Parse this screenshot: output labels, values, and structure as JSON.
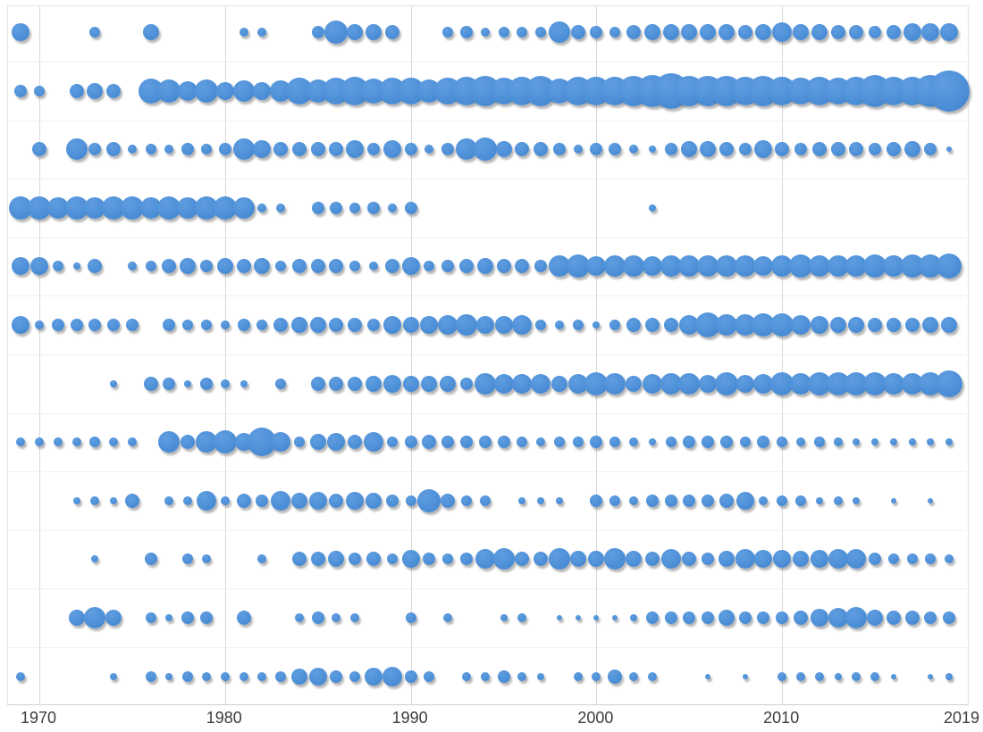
{
  "chart_data": {
    "type": "scatter",
    "subtype": "bubble-timeline",
    "title": "",
    "xlabel": "",
    "ylabel": "",
    "grid": "vertical-decades-and-faint-row-separators",
    "legend": "none",
    "x_axis": {
      "ticks": [
        "1970",
        "1980",
        "1990",
        "2000",
        "2010",
        "2019"
      ],
      "tick_years": [
        1970,
        1980,
        1990,
        2000,
        2010,
        2019
      ],
      "range_years": [
        1968,
        2020
      ]
    },
    "y_axis": {
      "rows": 12,
      "labels": []
    },
    "years_start": 1969,
    "years_end": 2019,
    "bubble_radius_unit": "px",
    "series": [
      {
        "name": "row-1",
        "radii": [
          10,
          0,
          0,
          0,
          6,
          0,
          0,
          9,
          0,
          0,
          0,
          0,
          5,
          5,
          0,
          0,
          7,
          13,
          9,
          9,
          8,
          0,
          0,
          6,
          7,
          5,
          6,
          6,
          6,
          12,
          8,
          7,
          6,
          8,
          9,
          9,
          9,
          9,
          9,
          8,
          9,
          11,
          9,
          9,
          8,
          8,
          7,
          8,
          10,
          10,
          10
        ]
      },
      {
        "name": "row-2",
        "radii": [
          7,
          6,
          0,
          8,
          9,
          8,
          0,
          14,
          13,
          11,
          13,
          10,
          12,
          10,
          12,
          15,
          13,
          15,
          16,
          14,
          15,
          15,
          13,
          15,
          16,
          17,
          15,
          16,
          17,
          14,
          16,
          16,
          16,
          17,
          18,
          20,
          17,
          17,
          17,
          16,
          17,
          16,
          15,
          16,
          15,
          16,
          18,
          16,
          16,
          18,
          23
        ]
      },
      {
        "name": "row-3",
        "radii": [
          0,
          8,
          0,
          12,
          7,
          8,
          5,
          6,
          5,
          7,
          6,
          7,
          12,
          10,
          8,
          8,
          8,
          8,
          10,
          7,
          10,
          7,
          5,
          7,
          12,
          13,
          9,
          8,
          8,
          7,
          5,
          7,
          7,
          5,
          4,
          7,
          9,
          9,
          8,
          7,
          10,
          8,
          7,
          8,
          8,
          8,
          7,
          8,
          9,
          7,
          3
        ]
      },
      {
        "name": "row-4",
        "radii": [
          13,
          13,
          12,
          13,
          12,
          13,
          13,
          12,
          13,
          12,
          13,
          13,
          12,
          5,
          5,
          0,
          7,
          7,
          6,
          7,
          5,
          7,
          0,
          0,
          0,
          0,
          0,
          0,
          0,
          0,
          0,
          0,
          0,
          0,
          4,
          0,
          0,
          0,
          0,
          0,
          0,
          0,
          0,
          0,
          0,
          0,
          0,
          0,
          0,
          0,
          0
        ]
      },
      {
        "name": "row-5",
        "radii": [
          10,
          10,
          6,
          4,
          8,
          0,
          5,
          6,
          8,
          9,
          7,
          9,
          8,
          9,
          6,
          8,
          8,
          8,
          6,
          5,
          8,
          10,
          6,
          7,
          8,
          9,
          8,
          8,
          7,
          12,
          13,
          11,
          12,
          12,
          11,
          12,
          12,
          12,
          12,
          12,
          11,
          12,
          13,
          12,
          12,
          12,
          13,
          12,
          13,
          13,
          14
        ]
      },
      {
        "name": "row-6",
        "radii": [
          10,
          5,
          7,
          7,
          7,
          7,
          7,
          0,
          7,
          6,
          6,
          5,
          7,
          6,
          8,
          9,
          9,
          8,
          8,
          7,
          10,
          9,
          10,
          11,
          12,
          10,
          10,
          11,
          6,
          5,
          6,
          4,
          6,
          8,
          8,
          8,
          11,
          14,
          12,
          12,
          13,
          13,
          11,
          10,
          9,
          9,
          8,
          8,
          8,
          9,
          9
        ]
      },
      {
        "name": "row-7",
        "radii": [
          0,
          0,
          0,
          0,
          0,
          4,
          0,
          8,
          7,
          4,
          7,
          5,
          4,
          0,
          6,
          0,
          8,
          8,
          8,
          9,
          10,
          9,
          9,
          9,
          7,
          12,
          11,
          11,
          11,
          9,
          11,
          13,
          12,
          9,
          11,
          12,
          12,
          10,
          13,
          10,
          11,
          13,
          12,
          13,
          13,
          13,
          13,
          12,
          12,
          13,
          15
        ]
      },
      {
        "name": "row-8",
        "radii": [
          5,
          5,
          5,
          5,
          6,
          5,
          5,
          0,
          12,
          8,
          12,
          13,
          10,
          16,
          11,
          6,
          9,
          10,
          8,
          11,
          6,
          7,
          8,
          7,
          7,
          7,
          7,
          6,
          5,
          6,
          6,
          7,
          6,
          5,
          4,
          6,
          7,
          7,
          7,
          6,
          7,
          6,
          5,
          6,
          5,
          4,
          4,
          4,
          4,
          4,
          4
        ]
      },
      {
        "name": "row-9",
        "radii": [
          0,
          0,
          0,
          4,
          5,
          4,
          8,
          0,
          5,
          5,
          11,
          5,
          8,
          7,
          11,
          9,
          10,
          8,
          10,
          9,
          7,
          6,
          13,
          8,
          6,
          6,
          0,
          4,
          4,
          4,
          0,
          7,
          6,
          5,
          7,
          7,
          7,
          7,
          8,
          10,
          5,
          6,
          6,
          4,
          5,
          4,
          0,
          3,
          0,
          3,
          0
        ]
      },
      {
        "name": "row-10",
        "radii": [
          0,
          0,
          0,
          0,
          4,
          0,
          0,
          7,
          0,
          6,
          5,
          0,
          0,
          5,
          0,
          8,
          8,
          9,
          7,
          8,
          6,
          10,
          7,
          6,
          7,
          11,
          12,
          8,
          8,
          12,
          9,
          9,
          12,
          9,
          8,
          11,
          8,
          7,
          9,
          11,
          10,
          10,
          9,
          10,
          11,
          11,
          7,
          6,
          6,
          6,
          5
        ]
      },
      {
        "name": "row-11",
        "radii": [
          0,
          0,
          0,
          9,
          12,
          9,
          0,
          6,
          4,
          7,
          7,
          0,
          8,
          0,
          0,
          5,
          7,
          5,
          5,
          0,
          0,
          6,
          0,
          5,
          0,
          0,
          4,
          5,
          0,
          3,
          3,
          3,
          3,
          4,
          7,
          7,
          7,
          7,
          9,
          7,
          7,
          7,
          8,
          10,
          11,
          12,
          9,
          8,
          8,
          7,
          7
        ]
      },
      {
        "name": "row-12",
        "radii": [
          5,
          0,
          0,
          0,
          0,
          4,
          0,
          6,
          4,
          6,
          5,
          5,
          5,
          5,
          6,
          9,
          10,
          7,
          6,
          10,
          11,
          7,
          6,
          0,
          5,
          5,
          7,
          5,
          4,
          0,
          5,
          5,
          8,
          5,
          5,
          0,
          0,
          3,
          0,
          3,
          0,
          5,
          5,
          5,
          4,
          5,
          5,
          3,
          0,
          3,
          4
        ]
      }
    ]
  },
  "style": {
    "background": "#ffffff",
    "bubble_color": "#4e90d8",
    "bubble_highlight": "#5f9ddf",
    "bubble_shadow": "rgba(95,95,95,0.45)",
    "decade_gridline_color": "#d9d9d9",
    "row_gridline_color": "#f2f2f2",
    "plot_border_color": "#e4e4e4",
    "axis_line_color": "#cfcfcf",
    "tick_label_color": "#3d3d3d"
  }
}
